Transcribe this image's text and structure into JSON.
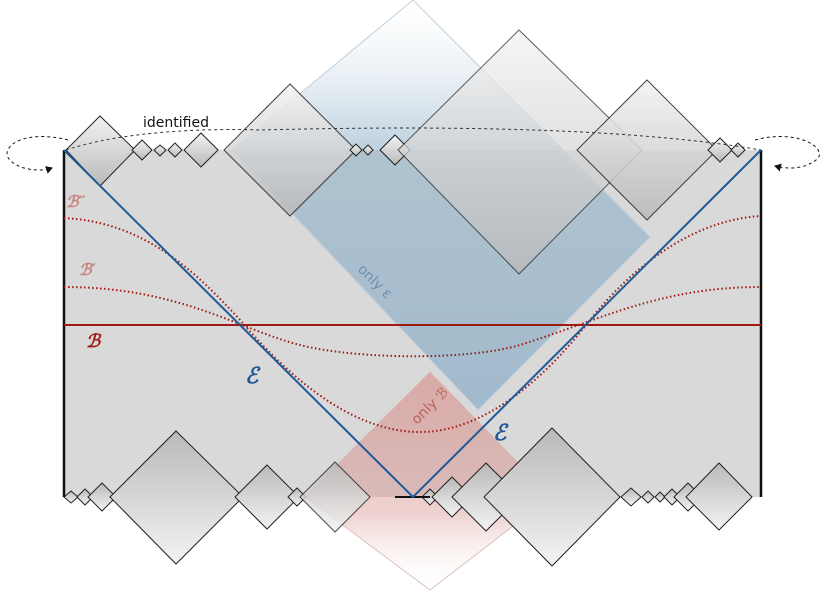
{
  "labels": {
    "identified": "identified",
    "only_e": "only ε",
    "only_b": "only ℬ",
    "e_left": "ℰ",
    "e_right": "ℰ",
    "b": "ℬ",
    "b_prime": "ℬ′",
    "b_double_prime": "ℬ″"
  },
  "colors": {
    "boundary": "#111111",
    "bulk_fill": "#d9d9d9",
    "e_curve": "#1f5a99",
    "b_curve": "#9e1a12",
    "b_prime_label": "#c9827d",
    "b_double_prime_label": "#c9827d",
    "only_e_region": "#8fb0c8",
    "only_b_region": "#d99a96",
    "only_e_text": "#6f8fae",
    "only_b_text": "#b8625c"
  },
  "icons": {
    "left_arrow": "dashed-curved-arrow-icon",
    "right_arrow": "dashed-curved-arrow-icon"
  }
}
